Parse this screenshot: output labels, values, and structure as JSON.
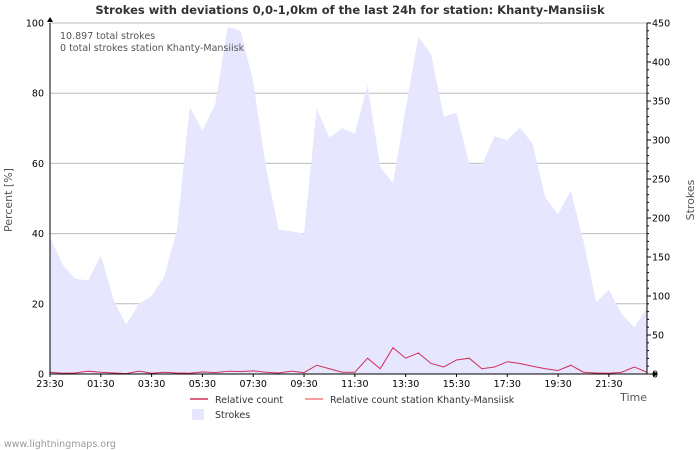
{
  "chart_data": {
    "type": "area",
    "title": "Strokes with deviations 0,0-1,0km of the last 24h for station: Khanty-Mansiisk",
    "ylabel_left": "Percent   [%]",
    "ylabel_right": "Strokes",
    "xlabel": "Time",
    "ylim_left": [
      0,
      100
    ],
    "ylim_right": [
      0,
      450
    ],
    "yticks_left": [
      0,
      20,
      40,
      60,
      80,
      100
    ],
    "yticks_right": [
      0,
      50,
      100,
      150,
      200,
      250,
      300,
      350,
      400,
      450
    ],
    "xticks": [
      "23:30",
      "01:30",
      "03:30",
      "05:30",
      "07:30",
      "09:30",
      "11:30",
      "13:30",
      "15:30",
      "17:30",
      "19:30",
      "21:30"
    ],
    "annotations": [
      "10.897 total strokes",
      "0 total strokes station Khanty-Mansiisk"
    ],
    "grid": true,
    "colors": {
      "strokes_fill": "#e6e6ff",
      "relative": "#d0305a",
      "relative_station": "#f08080",
      "grid": "#bbbbbb",
      "axis": "#000000",
      "text": "#333333"
    },
    "series": [
      {
        "name": "Strokes",
        "axis": "right",
        "style": "area",
        "values": [
          175,
          140,
          122,
          120,
          152,
          95,
          63,
          90,
          100,
          125,
          185,
          342,
          312,
          345,
          445,
          440,
          375,
          265,
          185,
          183,
          180,
          340,
          303,
          315,
          308,
          370,
          265,
          245,
          340,
          432,
          410,
          330,
          335,
          270,
          268,
          305,
          300,
          316,
          295,
          226,
          205,
          235,
          170,
          92,
          108,
          77,
          60,
          85
        ]
      },
      {
        "name": "Relative count",
        "axis": "left",
        "style": "line",
        "values": [
          0.5,
          0.2,
          0.3,
          0.8,
          0.5,
          0.3,
          0.1,
          0.8,
          0.2,
          0.5,
          0.3,
          0.2,
          0.6,
          0.4,
          0.8,
          0.7,
          0.9,
          0.5,
          0.3,
          0.8,
          0.4,
          2.5,
          1.5,
          0.5,
          0.5,
          4.5,
          1.5,
          7.5,
          4.5,
          6.0,
          3.0,
          2.0,
          4.0,
          4.5,
          1.5,
          2.0,
          3.5,
          3.0,
          2.2,
          1.5,
          1.0,
          2.5,
          0.5,
          0.3,
          0.2,
          0.5,
          2.0,
          0.5
        ]
      },
      {
        "name": "Relative count station Khanty-Mansiisk",
        "axis": "left",
        "style": "line",
        "values": []
      }
    ],
    "legend": [
      {
        "label": "Relative count",
        "style": "line",
        "color": "#d0305a"
      },
      {
        "label": "Relative count station Khanty-Mansiisk",
        "style": "line",
        "color": "#f08080"
      },
      {
        "label": "Strokes",
        "style": "box",
        "color": "#e6e6ff"
      }
    ]
  },
  "footer": {
    "source": "www.lightningmaps.org"
  }
}
